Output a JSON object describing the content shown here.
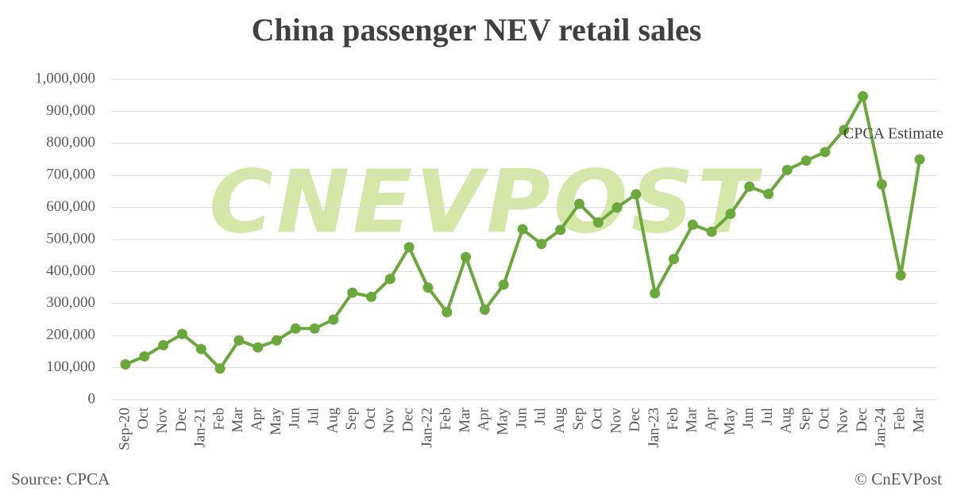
{
  "chart_data": {
    "type": "line",
    "title": "China passenger NEV retail sales",
    "categories": [
      "Sep-20",
      "Oct",
      "Nov",
      "Dec",
      "Jan-21",
      "Feb",
      "Mar",
      "Apr",
      "May",
      "Jun",
      "Jul",
      "Aug",
      "Sep",
      "Oct",
      "Nov",
      "Dec",
      "Jan-22",
      "Feb",
      "Mar",
      "Apr",
      "May",
      "Jun",
      "Jul",
      "Aug",
      "Sep",
      "Oct",
      "Nov",
      "Dec",
      "Jan-23",
      "Feb",
      "Mar",
      "Apr",
      "May",
      "Jun",
      "Jul",
      "Aug",
      "Sep",
      "Oct",
      "Nov",
      "Dec",
      "Jan-24",
      "Feb",
      "Mar"
    ],
    "values": [
      110000,
      135000,
      170000,
      205000,
      158000,
      97000,
      185000,
      163000,
      185000,
      222000,
      222000,
      250000,
      334000,
      321000,
      377000,
      476000,
      350000,
      273000,
      445000,
      281000,
      359000,
      532000,
      486000,
      530000,
      611000,
      553000,
      600000,
      641000,
      332000,
      439000,
      546000,
      524000,
      580000,
      665000,
      642000,
      717000,
      746000,
      773000,
      842000,
      947000,
      672000,
      388000,
      750000
    ],
    "color": "#6aa83c",
    "ylim": [
      0,
      1000000
    ],
    "yticks": [
      0,
      {
        "value": 100000,
        "label": "100,000"
      },
      {
        "value": 200000,
        "label": "200,000"
      },
      {
        "value": 300000,
        "label": "300,000"
      },
      {
        "value": 400000,
        "label": "400,000"
      },
      {
        "value": 500000,
        "label": "500,000"
      },
      {
        "value": 600000,
        "label": "600,000"
      },
      {
        "value": 700000,
        "label": "700,000"
      },
      {
        "value": 800000,
        "label": "800,000"
      },
      {
        "value": 900000,
        "label": "900,000"
      },
      {
        "value": 1000000,
        "label": "1,000,000"
      }
    ],
    "grid": true,
    "annotation": "CPCA Estimate",
    "watermark": "CNEVPOST",
    "source": "Source: CPCA",
    "copyright": "© CnEVPost"
  }
}
